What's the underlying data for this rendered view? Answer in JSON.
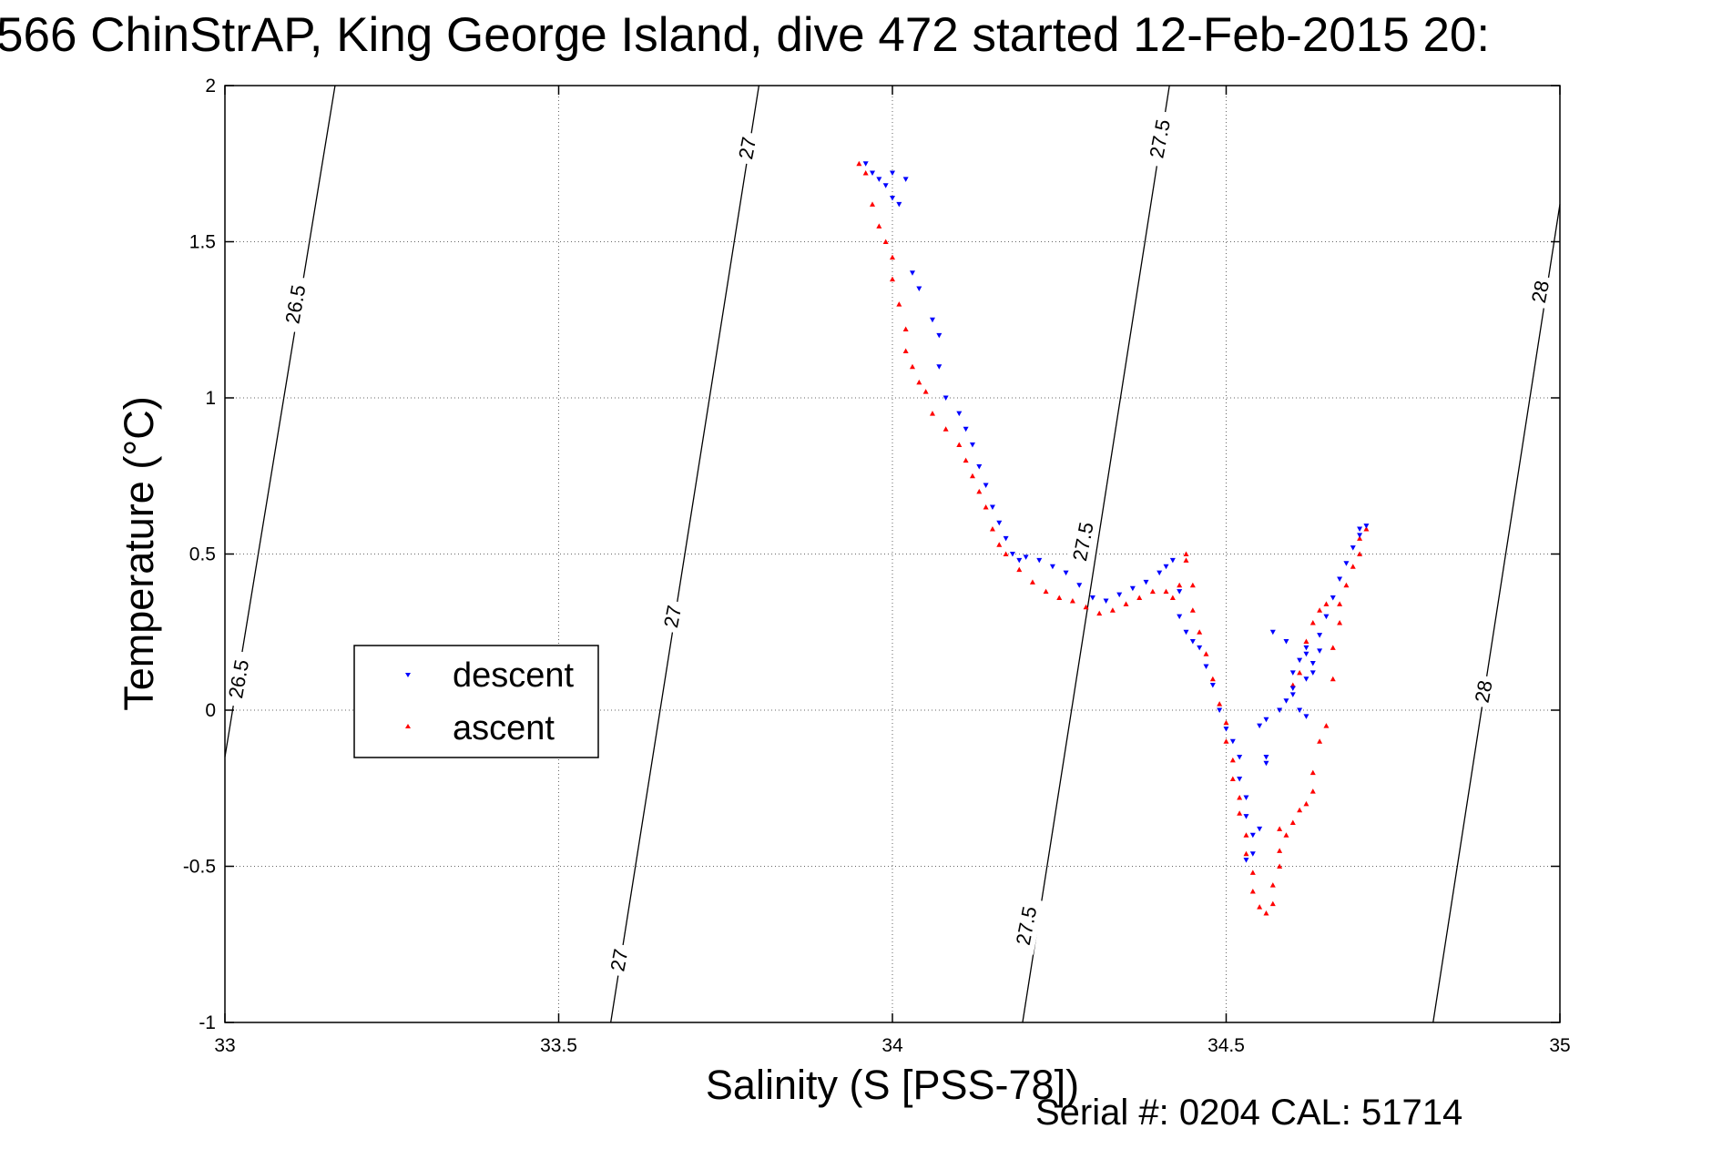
{
  "title": "566 ChinStrAP, King George Island, dive 472 started 12-Feb-2015 20:",
  "footer": "Serial #: 0204  CAL: 51714",
  "chart_data": {
    "type": "scatter",
    "title": "566 ChinStrAP, King George Island, dive 472 started 12-Feb-2015 20:",
    "xlabel": "Salinity (S [PSS-78])",
    "ylabel": "Temperature (°C)",
    "xlim": [
      33,
      35
    ],
    "ylim": [
      -1,
      2
    ],
    "xticks": [
      33,
      33.5,
      34,
      34.5,
      35
    ],
    "xtick_labels": [
      "33",
      "33.5",
      "34",
      "34.5",
      "35"
    ],
    "yticks": [
      -1,
      -0.5,
      0,
      0.5,
      1,
      1.5,
      2
    ],
    "ytick_labels": [
      "-1",
      "-0.5",
      "0",
      "0.5",
      "1",
      "1.5",
      "2"
    ],
    "grid": true,
    "legend": {
      "position": "center-left",
      "entries": [
        "descent",
        "ascent"
      ]
    },
    "series": [
      {
        "name": "descent",
        "color": "#0000ff",
        "marker": "triangle-down",
        "points": [
          [
            33.96,
            1.75
          ],
          [
            33.97,
            1.72
          ],
          [
            33.98,
            1.7
          ],
          [
            33.99,
            1.68
          ],
          [
            34.0,
            1.72
          ],
          [
            34.0,
            1.64
          ],
          [
            34.01,
            1.62
          ],
          [
            34.02,
            1.7
          ],
          [
            34.03,
            1.4
          ],
          [
            34.04,
            1.35
          ],
          [
            34.06,
            1.25
          ],
          [
            34.07,
            1.2
          ],
          [
            34.07,
            1.1
          ],
          [
            34.08,
            1.0
          ],
          [
            34.1,
            0.95
          ],
          [
            34.11,
            0.9
          ],
          [
            34.12,
            0.85
          ],
          [
            34.13,
            0.78
          ],
          [
            34.14,
            0.72
          ],
          [
            34.15,
            0.65
          ],
          [
            34.16,
            0.6
          ],
          [
            34.17,
            0.55
          ],
          [
            34.18,
            0.5
          ],
          [
            34.19,
            0.48
          ],
          [
            34.2,
            0.49
          ],
          [
            34.22,
            0.48
          ],
          [
            34.24,
            0.46
          ],
          [
            34.26,
            0.44
          ],
          [
            34.28,
            0.4
          ],
          [
            34.3,
            0.36
          ],
          [
            34.32,
            0.35
          ],
          [
            34.34,
            0.37
          ],
          [
            34.36,
            0.39
          ],
          [
            34.38,
            0.41
          ],
          [
            34.4,
            0.44
          ],
          [
            34.41,
            0.46
          ],
          [
            34.42,
            0.48
          ],
          [
            34.43,
            0.38
          ],
          [
            34.43,
            0.3
          ],
          [
            34.44,
            0.25
          ],
          [
            34.45,
            0.22
          ],
          [
            34.46,
            0.2
          ],
          [
            34.47,
            0.14
          ],
          [
            34.48,
            0.08
          ],
          [
            34.49,
            0.0
          ],
          [
            34.5,
            -0.06
          ],
          [
            34.51,
            -0.1
          ],
          [
            34.52,
            -0.15
          ],
          [
            34.52,
            -0.22
          ],
          [
            34.53,
            -0.28
          ],
          [
            34.53,
            -0.34
          ],
          [
            34.54,
            -0.4
          ],
          [
            34.54,
            -0.46
          ],
          [
            34.53,
            -0.48
          ],
          [
            34.55,
            -0.38
          ],
          [
            34.56,
            -0.15
          ],
          [
            34.55,
            -0.05
          ],
          [
            34.56,
            -0.03
          ],
          [
            34.58,
            0.0
          ],
          [
            34.59,
            0.03
          ],
          [
            34.6,
            0.07
          ],
          [
            34.6,
            0.12
          ],
          [
            34.61,
            0.16
          ],
          [
            34.62,
            0.18
          ],
          [
            34.62,
            0.2
          ],
          [
            34.63,
            0.15
          ],
          [
            34.63,
            0.12
          ],
          [
            34.64,
            0.19
          ],
          [
            34.64,
            0.24
          ],
          [
            34.65,
            0.3
          ],
          [
            34.66,
            0.36
          ],
          [
            34.67,
            0.42
          ],
          [
            34.68,
            0.47
          ],
          [
            34.69,
            0.52
          ],
          [
            34.7,
            0.56
          ],
          [
            34.7,
            0.58
          ],
          [
            34.71,
            0.59
          ],
          [
            34.61,
            0.0
          ],
          [
            34.62,
            -0.02
          ],
          [
            34.57,
            0.25
          ],
          [
            34.59,
            0.22
          ],
          [
            34.62,
            0.1
          ],
          [
            34.6,
            0.05
          ],
          [
            34.56,
            -0.17
          ]
        ]
      },
      {
        "name": "ascent",
        "color": "#ff0000",
        "marker": "triangle-up",
        "points": [
          [
            33.95,
            1.75
          ],
          [
            33.96,
            1.72
          ],
          [
            33.97,
            1.62
          ],
          [
            33.98,
            1.55
          ],
          [
            33.99,
            1.5
          ],
          [
            34.0,
            1.45
          ],
          [
            34.0,
            1.38
          ],
          [
            34.01,
            1.3
          ],
          [
            34.02,
            1.22
          ],
          [
            34.02,
            1.15
          ],
          [
            34.03,
            1.1
          ],
          [
            34.04,
            1.05
          ],
          [
            34.05,
            1.02
          ],
          [
            34.06,
            0.95
          ],
          [
            34.08,
            0.9
          ],
          [
            34.1,
            0.85
          ],
          [
            34.11,
            0.8
          ],
          [
            34.12,
            0.75
          ],
          [
            34.13,
            0.7
          ],
          [
            34.14,
            0.65
          ],
          [
            34.15,
            0.58
          ],
          [
            34.16,
            0.53
          ],
          [
            34.17,
            0.5
          ],
          [
            34.19,
            0.45
          ],
          [
            34.21,
            0.41
          ],
          [
            34.23,
            0.38
          ],
          [
            34.25,
            0.36
          ],
          [
            34.27,
            0.35
          ],
          [
            34.29,
            0.33
          ],
          [
            34.31,
            0.31
          ],
          [
            34.33,
            0.32
          ],
          [
            34.35,
            0.34
          ],
          [
            34.37,
            0.36
          ],
          [
            34.39,
            0.38
          ],
          [
            34.41,
            0.38
          ],
          [
            34.42,
            0.36
          ],
          [
            34.43,
            0.4
          ],
          [
            34.44,
            0.48
          ],
          [
            34.44,
            0.5
          ],
          [
            34.45,
            0.4
          ],
          [
            34.45,
            0.32
          ],
          [
            34.46,
            0.25
          ],
          [
            34.47,
            0.18
          ],
          [
            34.48,
            0.1
          ],
          [
            34.49,
            0.02
          ],
          [
            34.5,
            -0.04
          ],
          [
            34.5,
            -0.1
          ],
          [
            34.51,
            -0.16
          ],
          [
            34.51,
            -0.22
          ],
          [
            34.52,
            -0.28
          ],
          [
            34.52,
            -0.33
          ],
          [
            34.53,
            -0.4
          ],
          [
            34.53,
            -0.46
          ],
          [
            34.54,
            -0.52
          ],
          [
            34.54,
            -0.58
          ],
          [
            34.55,
            -0.63
          ],
          [
            34.56,
            -0.65
          ],
          [
            34.57,
            -0.62
          ],
          [
            34.57,
            -0.56
          ],
          [
            34.58,
            -0.5
          ],
          [
            34.58,
            -0.45
          ],
          [
            34.59,
            -0.4
          ],
          [
            34.6,
            -0.36
          ],
          [
            34.61,
            -0.32
          ],
          [
            34.62,
            -0.3
          ],
          [
            34.63,
            -0.26
          ],
          [
            34.63,
            -0.2
          ],
          [
            34.64,
            -0.1
          ],
          [
            34.65,
            -0.05
          ],
          [
            34.66,
            0.1
          ],
          [
            34.66,
            0.2
          ],
          [
            34.67,
            0.28
          ],
          [
            34.67,
            0.34
          ],
          [
            34.68,
            0.4
          ],
          [
            34.69,
            0.46
          ],
          [
            34.7,
            0.5
          ],
          [
            34.7,
            0.55
          ],
          [
            34.71,
            0.58
          ],
          [
            34.6,
            0.08
          ],
          [
            34.61,
            0.12
          ],
          [
            34.62,
            0.22
          ],
          [
            34.63,
            0.28
          ],
          [
            34.64,
            0.32
          ],
          [
            34.65,
            0.34
          ],
          [
            34.58,
            -0.38
          ]
        ]
      }
    ],
    "contours": [
      {
        "level": "26.5",
        "points": [
          [
            33.0,
            -0.15
          ],
          [
            33.165,
            2.0
          ]
        ],
        "labels": [
          {
            "text": "26.5",
            "x": 33.105,
            "y": 1.3,
            "rot": -80
          },
          {
            "text": "26.5",
            "x": 33.02,
            "y": 0.1,
            "rot": -80
          }
        ]
      },
      {
        "level": "27",
        "points": [
          [
            33.578,
            -1.0
          ],
          [
            33.8,
            2.0
          ]
        ],
        "labels": [
          {
            "text": "27",
            "x": 33.782,
            "y": 1.8,
            "rot": -79
          },
          {
            "text": "27",
            "x": 33.67,
            "y": 0.3,
            "rot": -79
          },
          {
            "text": "27",
            "x": 33.59,
            "y": -0.8,
            "rot": -79
          }
        ]
      },
      {
        "level": "27.5",
        "points": [
          [
            34.195,
            -1.0
          ],
          [
            34.415,
            2.0
          ]
        ],
        "labels": [
          {
            "text": "27.5",
            "x": 34.4,
            "y": 1.83,
            "rot": -79
          },
          {
            "text": "27.5",
            "x": 34.285,
            "y": 0.54,
            "rot": -79
          },
          {
            "text": "27.5",
            "x": 34.2,
            "y": -0.69,
            "rot": -79
          }
        ]
      },
      {
        "level": "28",
        "points": [
          [
            34.81,
            -1.0
          ],
          [
            35.0,
            1.62
          ]
        ],
        "labels": [
          {
            "text": "28",
            "x": 34.97,
            "y": 1.34,
            "rot": -79
          },
          {
            "text": "28",
            "x": 34.885,
            "y": 0.06,
            "rot": -79
          }
        ]
      }
    ]
  }
}
